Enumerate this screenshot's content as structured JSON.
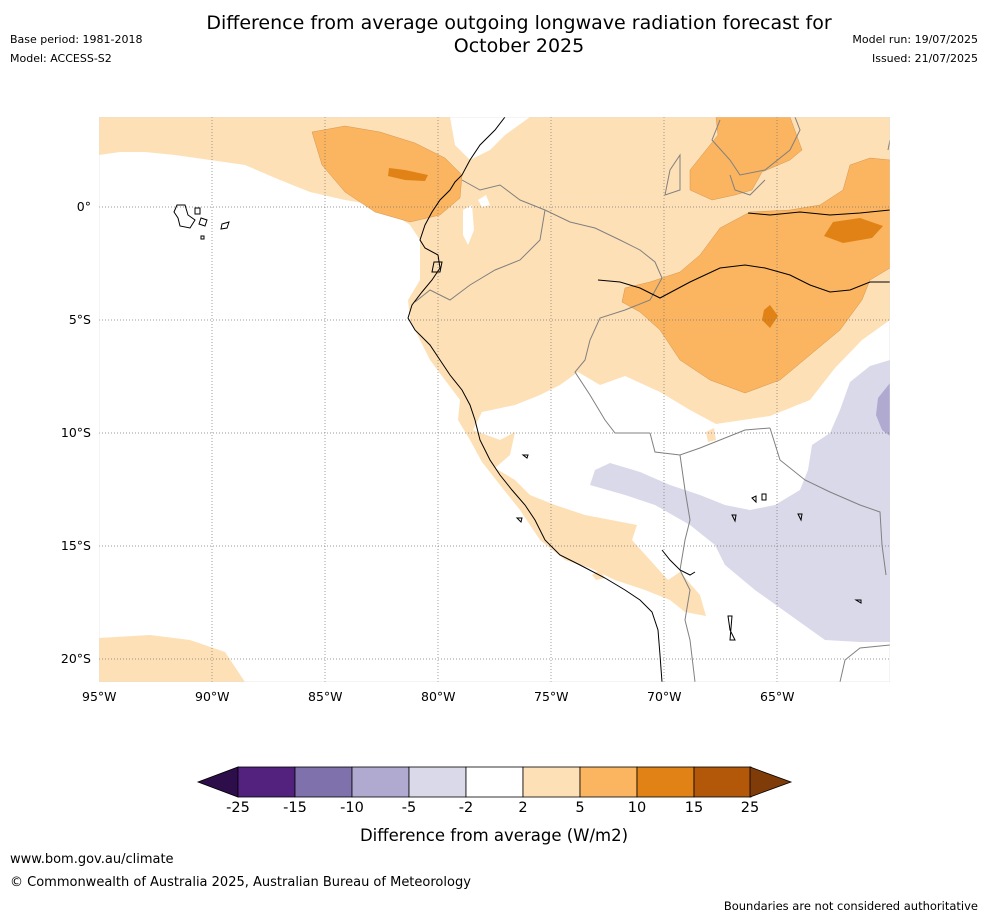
{
  "title_line1": "Difference from average outgoing longwave radiation forecast for",
  "title_line2": "October 2025",
  "meta": {
    "base_period": "Base period: 1981-2018",
    "model": "Model: ACCESS-S2",
    "model_run": "Model run: 19/07/2025",
    "issued": "Issued: 21/07/2025"
  },
  "map": {
    "lon_range": [
      -95,
      -60
    ],
    "lat_range": [
      -21,
      4
    ],
    "lon_ticks": [
      "95°W",
      "90°W",
      "85°W",
      "80°W",
      "75°W",
      "70°W",
      "65°W"
    ],
    "lat_ticks": [
      "0°",
      "5°S",
      "10°S",
      "15°S",
      "20°S"
    ],
    "gridlines": "dotted",
    "land_outline_color": "#000000",
    "border_color": "#808080"
  },
  "colorbar": {
    "label": "Difference from average (W/m2)",
    "tick_labels": [
      "-25",
      "-15",
      "-10",
      "-5",
      "-2",
      "2",
      "5",
      "10",
      "15",
      "25"
    ],
    "bins": [
      {
        "range": "<-25",
        "color": "#2d0d4a"
      },
      {
        "range": "-25 to -15",
        "color": "#53227f"
      },
      {
        "range": "-15 to -10",
        "color": "#7f71ab"
      },
      {
        "range": "-10 to -5",
        "color": "#b0a9d0"
      },
      {
        "range": "-5 to -2",
        "color": "#d9d9ea"
      },
      {
        "range": "-2 to 2",
        "color": "#ffffff"
      },
      {
        "range": "2 to 5",
        "color": "#fee0b6"
      },
      {
        "range": "5 to 10",
        "color": "#fbb45f"
      },
      {
        "range": "10 to 15",
        "color": "#e08216"
      },
      {
        "range": "15 to 25",
        "color": "#b35808"
      },
      {
        "range": ">25",
        "color": "#7f3b08"
      }
    ]
  },
  "footer": {
    "url": "www.bom.gov.au/climate",
    "copyright": "© Commonwealth of Australia 2025, Australian Bureau of Meteorology",
    "note": "Boundaries are not considered authoritative"
  }
}
